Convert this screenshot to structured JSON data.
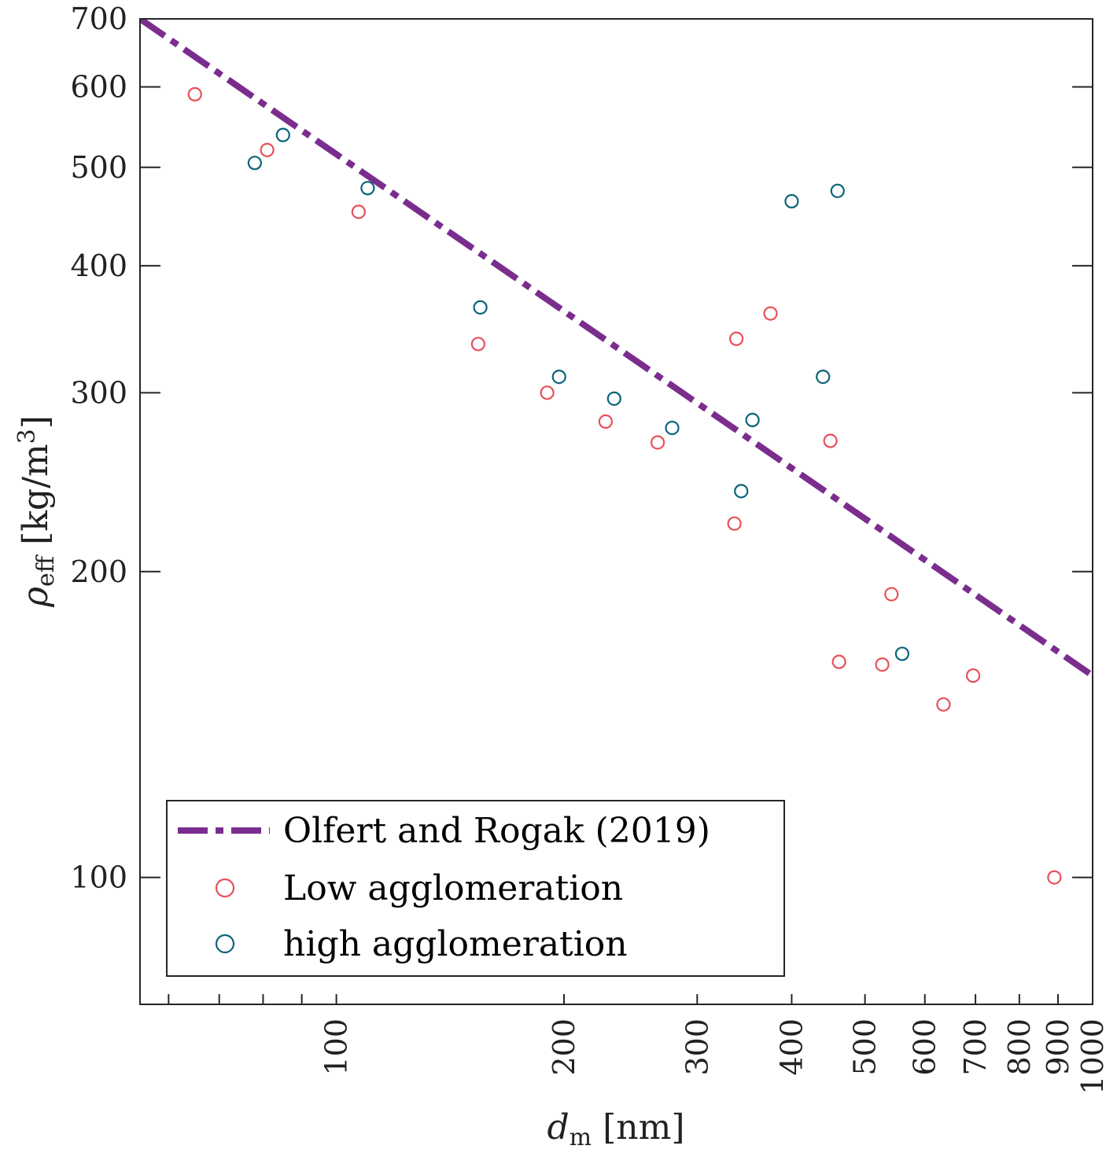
{
  "chart_data": {
    "type": "scatter",
    "x_scale": "log",
    "y_scale": "log",
    "xlim": [
      55,
      1000
    ],
    "ylim": [
      75,
      700
    ],
    "x_ticks": [
      100,
      200,
      300,
      400,
      500,
      600,
      700,
      800,
      900,
      1000
    ],
    "x_minor_ticks": [
      60,
      70,
      80,
      90
    ],
    "y_ticks": [
      100,
      200,
      300,
      400,
      500,
      600,
      700
    ],
    "x_label": {
      "symbol": "d",
      "subscript": "m",
      "unit": "[nm]"
    },
    "y_label": {
      "symbol": "ρ",
      "subscript": "eff",
      "unit": "[kg/m",
      "unit_sup": "3",
      "unit_end": "]"
    },
    "grid": false,
    "legend_position": "bottom-left",
    "series": [
      {
        "name": "Olfert and Rogak (2019)",
        "type": "line",
        "style": "dash-dot",
        "color": "#7b2d8e",
        "x": [
          55,
          1000
        ],
        "y": [
          700,
          158
        ]
      },
      {
        "name": "Low agglomeration",
        "type": "scatter",
        "marker": "circle-open",
        "color": "#e8505b",
        "x": [
          65,
          81,
          107,
          154,
          190,
          227,
          266,
          336,
          338,
          375,
          450,
          462,
          527,
          542,
          635,
          695,
          890
        ],
        "y": [
          590,
          520,
          452,
          335,
          300,
          281,
          268,
          223,
          339,
          359,
          269,
          163,
          162,
          190,
          148,
          158,
          100
        ]
      },
      {
        "name": "high agglomeration",
        "type": "scatter",
        "marker": "circle-open",
        "color": "#0b6479",
        "x": [
          78,
          85,
          110,
          155,
          197,
          233,
          278,
          343,
          355,
          400,
          440,
          460,
          560
        ],
        "y": [
          505,
          538,
          477,
          364,
          311,
          296,
          277,
          240,
          282,
          463,
          311,
          474,
          166
        ]
      }
    ]
  }
}
